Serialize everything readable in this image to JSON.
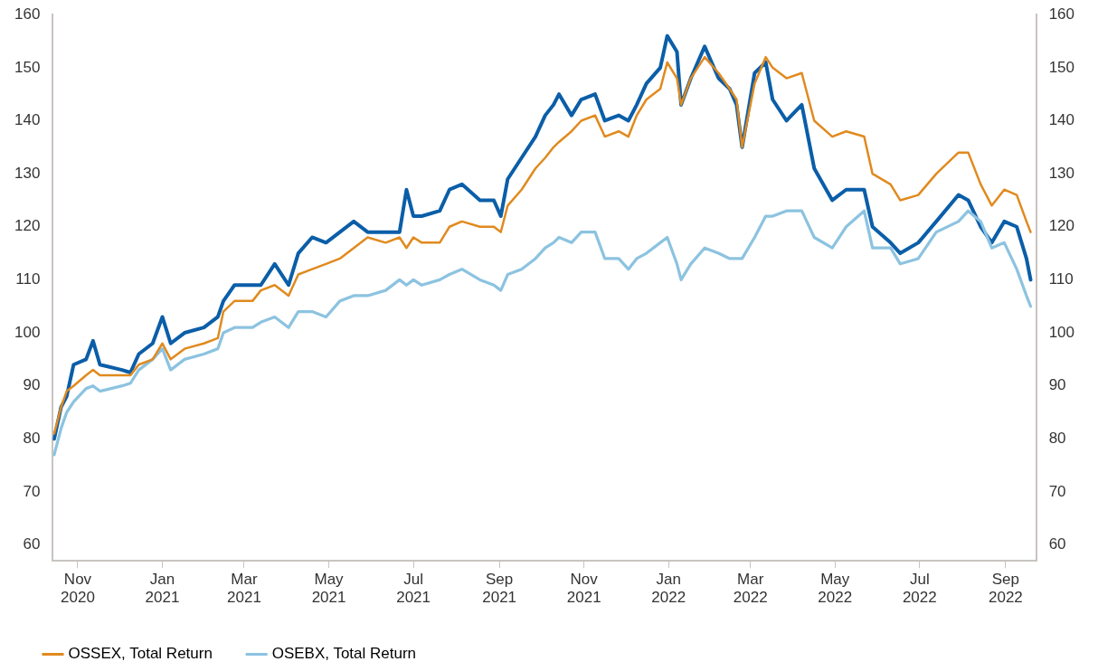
{
  "chart_data": {
    "type": "line",
    "x": [
      "2020-10-15",
      "2020-10-20",
      "2020-10-24",
      "2020-10-29",
      "2020-11-07",
      "2020-11-12",
      "2020-11-17",
      "2020-12-03",
      "2020-12-09",
      "2020-12-15",
      "2020-12-25",
      "2021-01-01",
      "2021-01-07",
      "2021-01-17",
      "2021-01-31",
      "2021-02-10",
      "2021-02-14",
      "2021-02-22",
      "2021-03-07",
      "2021-03-13",
      "2021-03-23",
      "2021-04-02",
      "2021-04-09",
      "2021-04-19",
      "2021-04-29",
      "2021-05-09",
      "2021-05-19",
      "2021-05-29",
      "2021-06-11",
      "2021-06-21",
      "2021-06-26",
      "2021-07-01",
      "2021-07-07",
      "2021-07-20",
      "2021-07-27",
      "2021-08-05",
      "2021-08-18",
      "2021-08-28",
      "2021-09-02",
      "2021-09-07",
      "2021-09-17",
      "2021-09-27",
      "2021-10-04",
      "2021-10-10",
      "2021-10-14",
      "2021-10-23",
      "2021-10-30",
      "2021-11-09",
      "2021-11-16",
      "2021-11-26",
      "2021-12-03",
      "2021-12-09",
      "2021-12-16",
      "2021-12-26",
      "2021-12-31",
      "2022-01-07",
      "2022-01-10",
      "2022-01-17",
      "2022-01-27",
      "2022-02-06",
      "2022-02-14",
      "2022-02-19",
      "2022-02-23",
      "2022-03-04",
      "2022-03-12",
      "2022-03-17",
      "2022-03-27",
      "2022-04-07",
      "2022-04-16",
      "2022-04-29",
      "2022-05-09",
      "2022-05-22",
      "2022-05-28",
      "2022-06-10",
      "2022-06-17",
      "2022-06-30",
      "2022-07-13",
      "2022-07-29",
      "2022-08-05",
      "2022-08-14",
      "2022-08-22",
      "2022-08-31",
      "2022-09-09",
      "2022-09-16",
      "2022-09-19"
    ],
    "series": [
      {
        "name": "OSSEX, Total Return",
        "color": "#e08a1e",
        "values": [
          81,
          86,
          89,
          90,
          92,
          93,
          92,
          92,
          92,
          94,
          95,
          98,
          95,
          97,
          98,
          99,
          104,
          106,
          106,
          108,
          109,
          107,
          111,
          112,
          113,
          114,
          116,
          118,
          117,
          118,
          116,
          118,
          117,
          117,
          120,
          121,
          120,
          120,
          119,
          124,
          127,
          131,
          133,
          135,
          136,
          138,
          140,
          141,
          137,
          138,
          137,
          141,
          144,
          146,
          151,
          148,
          143,
          148,
          152,
          149,
          146,
          144,
          135,
          147,
          152,
          150,
          148,
          149,
          140,
          137,
          138,
          137,
          130,
          128,
          125,
          126,
          130,
          134,
          134,
          128,
          124,
          127,
          126,
          121,
          119
        ]
      },
      {
        "name": "OSEBX, Total Return",
        "color": "#8cc3e0",
        "values": [
          77,
          82,
          85,
          87,
          89.5,
          90,
          89,
          90,
          90.5,
          93,
          95,
          97,
          93,
          95,
          96,
          97,
          100,
          101,
          101,
          102,
          103,
          101,
          104,
          104,
          103,
          106,
          107,
          107,
          108,
          110,
          109,
          110,
          109,
          110,
          111,
          112,
          110,
          109,
          108,
          111,
          112,
          114,
          116,
          117,
          118,
          117,
          119,
          119,
          114,
          114,
          112,
          114,
          115,
          117,
          118,
          113,
          110,
          113,
          116,
          115,
          114,
          114,
          114,
          118,
          122,
          122,
          123,
          123,
          118,
          116,
          120,
          123,
          116,
          116,
          113,
          114,
          119,
          121,
          123,
          121,
          116,
          117,
          112,
          107,
          105
        ]
      },
      {
        "color": "#0b5ea8",
        "values": [
          80,
          86,
          88,
          94,
          95,
          98.5,
          94,
          93,
          92.5,
          96,
          98,
          103,
          98,
          100,
          101,
          103,
          106,
          109,
          109,
          109,
          113,
          109,
          115,
          118,
          117,
          119,
          121,
          119,
          119,
          119,
          127,
          122,
          122,
          123,
          127,
          128,
          125,
          125,
          122,
          129,
          133,
          137,
          141,
          143,
          145,
          141,
          144,
          145,
          140,
          141,
          140,
          143,
          147,
          150,
          156,
          153,
          143,
          148,
          154,
          148,
          146,
          143,
          135,
          149,
          151,
          144,
          140,
          143,
          131,
          125,
          127,
          127,
          120,
          117,
          115,
          117,
          121,
          126,
          125,
          120,
          117,
          121,
          120,
          114,
          110
        ]
      }
    ],
    "xlim": [
      "2020-10-14",
      "2022-09-23"
    ],
    "xticks": [
      {
        "value": "2020-11-01",
        "label": "Nov 2020"
      },
      {
        "value": "2021-01-01",
        "label": "Jan 2021"
      },
      {
        "value": "2021-03-01",
        "label": "Mar 2021"
      },
      {
        "value": "2021-05-01",
        "label": "May 2021"
      },
      {
        "value": "2021-07-01",
        "label": "Jul 2021"
      },
      {
        "value": "2021-09-01",
        "label": "Sep 2021"
      },
      {
        "value": "2021-11-01",
        "label": "Nov 2021"
      },
      {
        "value": "2022-01-01",
        "label": "Jan 2022"
      },
      {
        "value": "2022-03-01",
        "label": "Mar 2022"
      },
      {
        "value": "2022-05-01",
        "label": "May 2022"
      },
      {
        "value": "2022-07-01",
        "label": "Jul 2022"
      },
      {
        "value": "2022-09-01",
        "label": "Sep 2022"
      }
    ],
    "ylim": [
      57,
      160
    ],
    "yticks": [
      60,
      70,
      80,
      90,
      100,
      110,
      120,
      130,
      140,
      150,
      160
    ],
    "y2lim": [
      57,
      160
    ],
    "y2ticks": [
      60,
      70,
      80,
      90,
      100,
      110,
      120,
      130,
      140,
      150,
      160
    ],
    "grid": false,
    "legend": "bottom",
    "marker": "none",
    "line_style": "solid"
  }
}
